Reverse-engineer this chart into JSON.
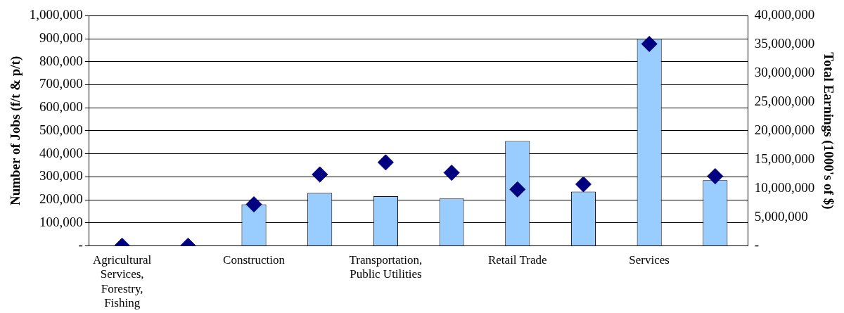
{
  "chart_data": {
    "type": "bar",
    "ylabel": "Number of Jobs (f/t & p/t)",
    "y2label": "Total Earnings (1000's of $)",
    "categories": [
      "Agricultural Services, Forestry, Fishing",
      null,
      "Construction",
      null,
      "Transportation, Public Utilities",
      null,
      "Retail Trade",
      null,
      "Services",
      null
    ],
    "series": [
      {
        "color": "#99ccff",
        "values": [
          0,
          0,
          180000,
          230000,
          215000,
          205000,
          455000,
          235000,
          900000,
          285000
        ]
      },
      {
        "type": "scatter",
        "axis": "y2",
        "color": "#000080",
        "marker": "diamond",
        "values": [
          0,
          0,
          7200000,
          12400000,
          14500000,
          12700000,
          9800000,
          10700000,
          35100000,
          12100000
        ]
      }
    ],
    "ylim": [
      0,
      1000000
    ],
    "yticks": [
      {
        "value": 0,
        "label": "-"
      },
      {
        "value": 100000,
        "label": "100,000"
      },
      {
        "value": 200000,
        "label": "200,000"
      },
      {
        "value": 300000,
        "label": "300,000"
      },
      {
        "value": 400000,
        "label": "400,000"
      },
      {
        "value": 500000,
        "label": "500,000"
      },
      {
        "value": 600000,
        "label": "600,000"
      },
      {
        "value": 700000,
        "label": "700,000"
      },
      {
        "value": 800000,
        "label": "800,000"
      },
      {
        "value": 900000,
        "label": "900,000"
      },
      {
        "value": 1000000,
        "label": "1,000,000"
      }
    ],
    "y2lim": [
      0,
      40000000
    ],
    "y2ticks": [
      {
        "value": 0,
        "label": "-"
      },
      {
        "value": 5000000,
        "label": "5,000,000"
      },
      {
        "value": 10000000,
        "label": "10,000,000"
      },
      {
        "value": 15000000,
        "label": "15,000,000"
      },
      {
        "value": 20000000,
        "label": "20,000,000"
      },
      {
        "value": 25000000,
        "label": "25,000,000"
      },
      {
        "value": 30000000,
        "label": "30,000,000"
      },
      {
        "value": 35000000,
        "label": "35,000,000"
      },
      {
        "value": 40000000,
        "label": "40,000,000"
      }
    ],
    "grid": "y",
    "legend": false
  }
}
